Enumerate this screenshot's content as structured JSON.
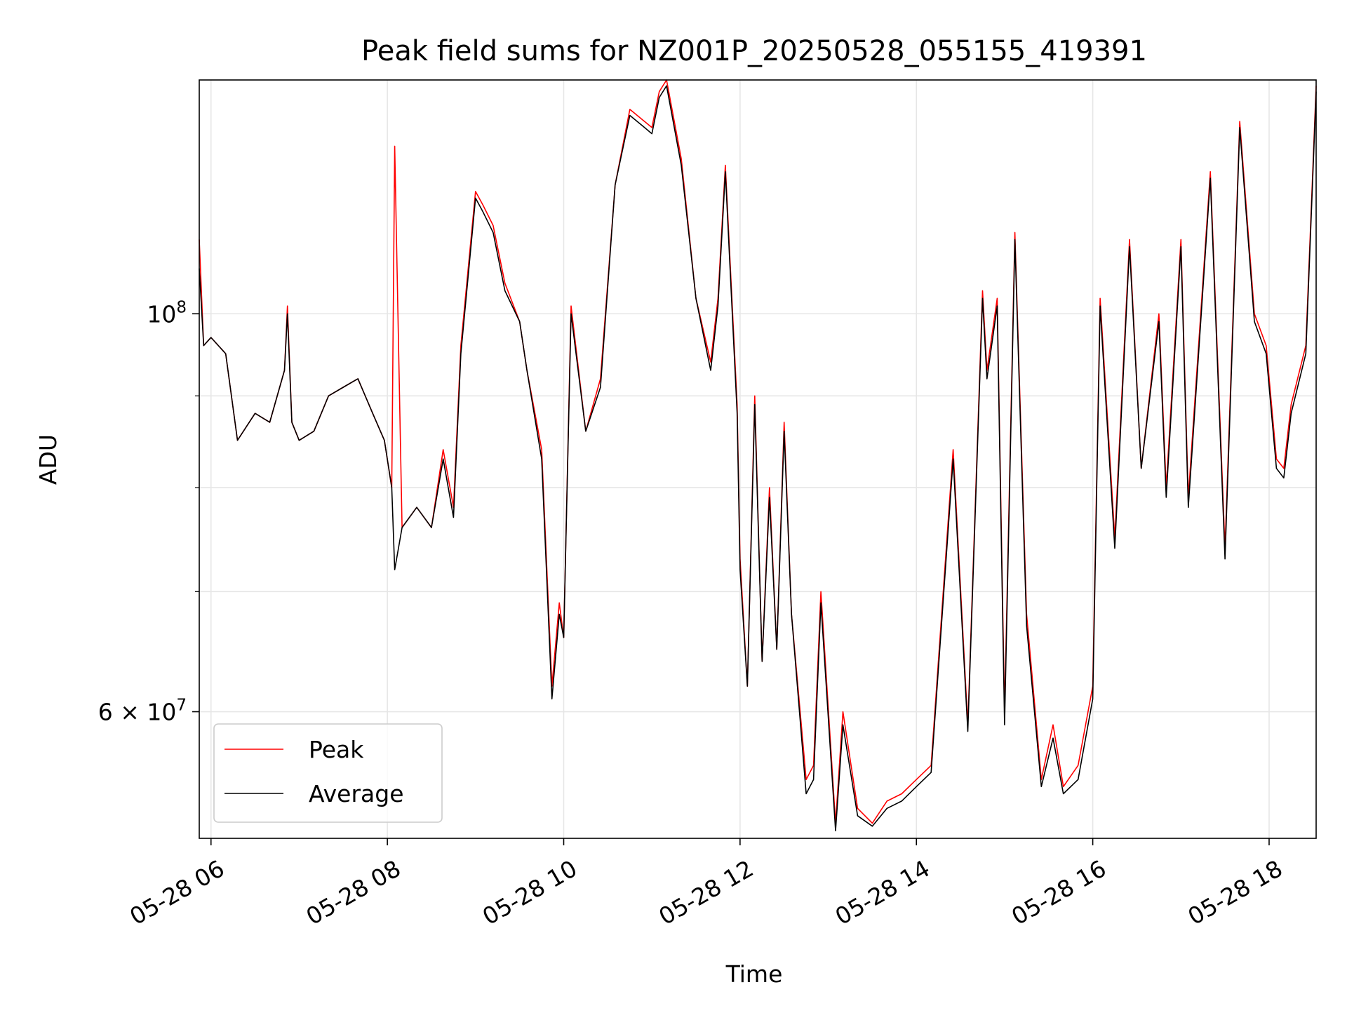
{
  "chart_data": {
    "type": "line",
    "title": "Peak field sums for NZ001P_20250528_055155_419391",
    "xlabel": "Time",
    "ylabel": "ADU",
    "yscale": "log",
    "grid": true,
    "legend_placement": "lower-left",
    "x_range": [
      "2025-05-28 05:52",
      "2025-05-28 18:32"
    ],
    "ylim": [
      51000000,
      135000000
    ],
    "x_tick_labels": [
      "05-28 06",
      "05-28 08",
      "05-28 10",
      "05-28 12",
      "05-28 14",
      "05-28 16",
      "05-28 18"
    ],
    "x_tick_values": [
      "2025-05-28 06:00",
      "2025-05-28 08:00",
      "2025-05-28 10:00",
      "2025-05-28 12:00",
      "2025-05-28 14:00",
      "2025-05-28 16:00",
      "2025-05-28 18:00"
    ],
    "y_tick_labels": [
      {
        "value": 100000000,
        "mantissa": "",
        "base": "10",
        "exp": "8"
      },
      {
        "value": 60000000,
        "mantissa": "6 × ",
        "base": "10",
        "exp": "7"
      }
    ],
    "y_minor_ticks": [
      70000000,
      80000000,
      90000000
    ],
    "series": [
      {
        "name": "Peak",
        "color": "#ff0000",
        "x": [
          "2025-05-28 05:52",
          "2025-05-28 05:55",
          "2025-05-28 06:00",
          "2025-05-28 06:10",
          "2025-05-28 06:18",
          "2025-05-28 06:30",
          "2025-05-28 06:40",
          "2025-05-28 06:50",
          "2025-05-28 06:52",
          "2025-05-28 06:55",
          "2025-05-28 07:00",
          "2025-05-28 07:10",
          "2025-05-28 07:20",
          "2025-05-28 07:30",
          "2025-05-28 07:40",
          "2025-05-28 07:50",
          "2025-05-28 07:58",
          "2025-05-28 08:03",
          "2025-05-28 08:05",
          "2025-05-28 08:10",
          "2025-05-28 08:20",
          "2025-05-28 08:30",
          "2025-05-28 08:38",
          "2025-05-28 08:45",
          "2025-05-28 08:50",
          "2025-05-28 09:00",
          "2025-05-28 09:05",
          "2025-05-28 09:12",
          "2025-05-28 09:20",
          "2025-05-28 09:30",
          "2025-05-28 09:35",
          "2025-05-28 09:45",
          "2025-05-28 09:52",
          "2025-05-28 09:57",
          "2025-05-28 10:00",
          "2025-05-28 10:05",
          "2025-05-28 10:15",
          "2025-05-28 10:25",
          "2025-05-28 10:35",
          "2025-05-28 10:45",
          "2025-05-28 10:55",
          "2025-05-28 11:00",
          "2025-05-28 11:05",
          "2025-05-28 11:10",
          "2025-05-28 11:20",
          "2025-05-28 11:30",
          "2025-05-28 11:40",
          "2025-05-28 11:45",
          "2025-05-28 11:50",
          "2025-05-28 11:58",
          "2025-05-28 12:00",
          "2025-05-28 12:05",
          "2025-05-28 12:10",
          "2025-05-28 12:15",
          "2025-05-28 12:20",
          "2025-05-28 12:25",
          "2025-05-28 12:30",
          "2025-05-28 12:35",
          "2025-05-28 12:45",
          "2025-05-28 12:50",
          "2025-05-28 12:55",
          "2025-05-28 13:05",
          "2025-05-28 13:10",
          "2025-05-28 13:20",
          "2025-05-28 13:30",
          "2025-05-28 13:40",
          "2025-05-28 13:50",
          "2025-05-28 14:00",
          "2025-05-28 14:10",
          "2025-05-28 14:25",
          "2025-05-28 14:35",
          "2025-05-28 14:45",
          "2025-05-28 14:48",
          "2025-05-28 14:55",
          "2025-05-28 15:00",
          "2025-05-28 15:07",
          "2025-05-28 15:15",
          "2025-05-28 15:25",
          "2025-05-28 15:33",
          "2025-05-28 15:40",
          "2025-05-28 15:50",
          "2025-05-28 16:00",
          "2025-05-28 16:05",
          "2025-05-28 16:15",
          "2025-05-28 16:25",
          "2025-05-28 16:33",
          "2025-05-28 16:45",
          "2025-05-28 16:50",
          "2025-05-28 17:00",
          "2025-05-28 17:05",
          "2025-05-28 17:20",
          "2025-05-28 17:30",
          "2025-05-28 17:40",
          "2025-05-28 17:50",
          "2025-05-28 17:58",
          "2025-05-28 18:05",
          "2025-05-28 18:10",
          "2025-05-28 18:15",
          "2025-05-28 18:25",
          "2025-05-28 18:32"
        ],
        "values": [
          110000000,
          96000000,
          97000000,
          95000000,
          85000000,
          88000000,
          87000000,
          93000000,
          101000000,
          87000000,
          85000000,
          86000000,
          90000000,
          91000000,
          92000000,
          88000000,
          85000000,
          80000000,
          124000000,
          76000000,
          78000000,
          76000000,
          84000000,
          78000000,
          96000000,
          117000000,
          115000000,
          112000000,
          104000000,
          99000000,
          93000000,
          84000000,
          62000000,
          69000000,
          66000000,
          101000000,
          86000000,
          92000000,
          118000000,
          130000000,
          128000000,
          127000000,
          133000000,
          135000000,
          122000000,
          102000000,
          94000000,
          102000000,
          121000000,
          89000000,
          73000000,
          62000000,
          90000000,
          64000000,
          80000000,
          65000000,
          87000000,
          68000000,
          55000000,
          56000000,
          70000000,
          52000000,
          60000000,
          53000000,
          52000000,
          53500000,
          54000000,
          55000000,
          56000000,
          84000000,
          59000000,
          103000000,
          93000000,
          102000000,
          60000000,
          111000000,
          68000000,
          55000000,
          59000000,
          54500000,
          56000000,
          62000000,
          102000000,
          75000000,
          110000000,
          82000000,
          100000000,
          80000000,
          110000000,
          79000000,
          120000000,
          74000000,
          128000000,
          100000000,
          96000000,
          83000000,
          82000000,
          89000000,
          96000000,
          134000000
        ]
      },
      {
        "name": "Average",
        "color": "#000000",
        "x": [
          "2025-05-28 05:52",
          "2025-05-28 05:55",
          "2025-05-28 06:00",
          "2025-05-28 06:10",
          "2025-05-28 06:18",
          "2025-05-28 06:30",
          "2025-05-28 06:40",
          "2025-05-28 06:50",
          "2025-05-28 06:52",
          "2025-05-28 06:55",
          "2025-05-28 07:00",
          "2025-05-28 07:10",
          "2025-05-28 07:20",
          "2025-05-28 07:30",
          "2025-05-28 07:40",
          "2025-05-28 07:50",
          "2025-05-28 07:58",
          "2025-05-28 08:03",
          "2025-05-28 08:05",
          "2025-05-28 08:10",
          "2025-05-28 08:20",
          "2025-05-28 08:30",
          "2025-05-28 08:38",
          "2025-05-28 08:45",
          "2025-05-28 08:50",
          "2025-05-28 09:00",
          "2025-05-28 09:05",
          "2025-05-28 09:12",
          "2025-05-28 09:20",
          "2025-05-28 09:30",
          "2025-05-28 09:35",
          "2025-05-28 09:45",
          "2025-05-28 09:52",
          "2025-05-28 09:57",
          "2025-05-28 10:00",
          "2025-05-28 10:05",
          "2025-05-28 10:15",
          "2025-05-28 10:25",
          "2025-05-28 10:35",
          "2025-05-28 10:45",
          "2025-05-28 10:55",
          "2025-05-28 11:00",
          "2025-05-28 11:05",
          "2025-05-28 11:10",
          "2025-05-28 11:20",
          "2025-05-28 11:30",
          "2025-05-28 11:40",
          "2025-05-28 11:45",
          "2025-05-28 11:50",
          "2025-05-28 11:58",
          "2025-05-28 12:00",
          "2025-05-28 12:05",
          "2025-05-28 12:10",
          "2025-05-28 12:15",
          "2025-05-28 12:20",
          "2025-05-28 12:25",
          "2025-05-28 12:30",
          "2025-05-28 12:35",
          "2025-05-28 12:45",
          "2025-05-28 12:50",
          "2025-05-28 12:55",
          "2025-05-28 13:05",
          "2025-05-28 13:10",
          "2025-05-28 13:20",
          "2025-05-28 13:30",
          "2025-05-28 13:40",
          "2025-05-28 13:50",
          "2025-05-28 14:00",
          "2025-05-28 14:10",
          "2025-05-28 14:25",
          "2025-05-28 14:35",
          "2025-05-28 14:45",
          "2025-05-28 14:48",
          "2025-05-28 14:55",
          "2025-05-28 15:00",
          "2025-05-28 15:07",
          "2025-05-28 15:15",
          "2025-05-28 15:25",
          "2025-05-28 15:33",
          "2025-05-28 15:40",
          "2025-05-28 15:50",
          "2025-05-28 16:00",
          "2025-05-28 16:05",
          "2025-05-28 16:15",
          "2025-05-28 16:25",
          "2025-05-28 16:33",
          "2025-05-28 16:45",
          "2025-05-28 16:50",
          "2025-05-28 17:00",
          "2025-05-28 17:05",
          "2025-05-28 17:20",
          "2025-05-28 17:30",
          "2025-05-28 17:40",
          "2025-05-28 17:50",
          "2025-05-28 17:58",
          "2025-05-28 18:05",
          "2025-05-28 18:10",
          "2025-05-28 18:15",
          "2025-05-28 18:25",
          "2025-05-28 18:32"
        ],
        "values": [
          106000000,
          96000000,
          97000000,
          95000000,
          85000000,
          88000000,
          87000000,
          93000000,
          100000000,
          87000000,
          85000000,
          86000000,
          90000000,
          91000000,
          92000000,
          88000000,
          85000000,
          80000000,
          72000000,
          76000000,
          78000000,
          76000000,
          83000000,
          77000000,
          95000000,
          116000000,
          114000000,
          111000000,
          103000000,
          99000000,
          93000000,
          83000000,
          61000000,
          68000000,
          66000000,
          100000000,
          86000000,
          91000000,
          118000000,
          129000000,
          127000000,
          126000000,
          132000000,
          134000000,
          121000000,
          102000000,
          93000000,
          101000000,
          120000000,
          88000000,
          72000000,
          62000000,
          89000000,
          64000000,
          79000000,
          65000000,
          86000000,
          68000000,
          54000000,
          55000000,
          69000000,
          51500000,
          59000000,
          52500000,
          51800000,
          53000000,
          53500000,
          54500000,
          55500000,
          83000000,
          58500000,
          102000000,
          92000000,
          101000000,
          59000000,
          110000000,
          67000000,
          54500000,
          58000000,
          54000000,
          55000000,
          61000000,
          101000000,
          74000000,
          109000000,
          82000000,
          99000000,
          79000000,
          109000000,
          78000000,
          119000000,
          73000000,
          127000000,
          99000000,
          95000000,
          82000000,
          81000000,
          88000000,
          95000000,
          133000000
        ]
      }
    ]
  }
}
